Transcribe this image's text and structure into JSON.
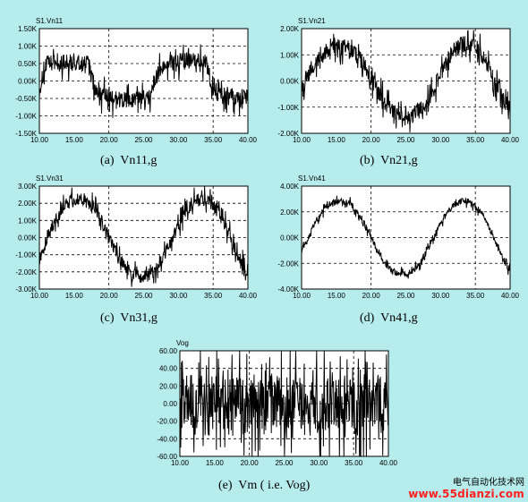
{
  "chart_data": [
    {
      "type": "line",
      "title": "S1.Vn11",
      "caption": "(a)  Vn11,g",
      "x_ticks": [
        "10.00",
        "15.00",
        "20.00",
        "25.00",
        "30.00",
        "35.00",
        "40.00"
      ],
      "y_ticks": [
        "1.50K",
        "1.00K",
        "0.50K",
        "0.00K",
        "-0.50K",
        "-1.00K",
        "-1.50K"
      ],
      "xlim": [
        10,
        40
      ],
      "ylim": [
        -1500,
        1500
      ],
      "grid": true,
      "series": [
        {
          "x": [
            10.0,
            11.0,
            12.0,
            13.0,
            14.0,
            15.0,
            16.0,
            17.0,
            18.0,
            19.0,
            20.0,
            21.0,
            22.0,
            23.0,
            24.0,
            25.0,
            26.0,
            27.0,
            28.0,
            29.0,
            30.0,
            31.0,
            32.0,
            33.0,
            34.0,
            35.0,
            36.0,
            37.0,
            38.0,
            39.0,
            40.0
          ],
          "y": [
            -250,
            500,
            500,
            500,
            550,
            520,
            500,
            500,
            -200,
            -400,
            -500,
            -500,
            -550,
            -550,
            -500,
            -500,
            -450,
            200,
            500,
            550,
            550,
            600,
            550,
            550,
            500,
            -200,
            -400,
            -450,
            -450,
            -450,
            -400
          ],
          "noise": 350
        }
      ]
    },
    {
      "type": "line",
      "title": "S1.Vn21",
      "caption": "(b)  Vn21,g",
      "x_ticks": [
        "10.00",
        "15.00",
        "20.00",
        "25.00",
        "30.00",
        "35.00",
        "40.00"
      ],
      "y_ticks": [
        "2.00K",
        "1.00K",
        "0.00K",
        "-1.00K",
        "-2.00K"
      ],
      "xlim": [
        10,
        40
      ],
      "ylim": [
        -2000,
        2000
      ],
      "grid": true,
      "series": [
        {
          "x": [
            10.0,
            11.0,
            12.0,
            13.0,
            14.0,
            15.0,
            16.0,
            17.0,
            18.0,
            19.0,
            20.0,
            21.0,
            22.0,
            23.0,
            24.0,
            25.0,
            26.0,
            27.0,
            28.0,
            29.0,
            30.0,
            31.0,
            32.0,
            33.0,
            34.0,
            35.0,
            36.0,
            37.0,
            38.0,
            39.0,
            40.0
          ],
          "y": [
            -200,
            300,
            700,
            1000,
            1200,
            1300,
            1300,
            1200,
            1000,
            600,
            100,
            -400,
            -800,
            -1100,
            -1300,
            -1400,
            -1300,
            -1100,
            -800,
            -300,
            300,
            800,
            1200,
            1400,
            1400,
            1300,
            1000,
            500,
            -100,
            -700,
            -1100
          ],
          "noise": 450
        }
      ]
    },
    {
      "type": "line",
      "title": "S1.Vn31",
      "caption": "(c)  Vn31,g",
      "x_ticks": [
        "10.00",
        "15.00",
        "20.00",
        "25.00",
        "30.00",
        "35.00",
        "40.00"
      ],
      "y_ticks": [
        "3.00K",
        "2.00K",
        "1.00K",
        "0.00K",
        "-1.00K",
        "-2.00K",
        "-3.00K"
      ],
      "xlim": [
        10,
        40
      ],
      "ylim": [
        -3000,
        3000
      ],
      "grid": true,
      "series": [
        {
          "x": [
            10.0,
            11.0,
            12.0,
            13.0,
            14.0,
            15.0,
            16.0,
            17.0,
            18.0,
            19.0,
            20.0,
            21.0,
            22.0,
            23.0,
            24.0,
            25.0,
            26.0,
            27.0,
            28.0,
            29.0,
            30.0,
            31.0,
            32.0,
            33.0,
            34.0,
            35.0,
            36.0,
            37.0,
            38.0,
            39.0,
            40.0
          ],
          "y": [
            -1200,
            -200,
            800,
            1500,
            2000,
            2200,
            2200,
            2000,
            1600,
            900,
            0,
            -800,
            -1500,
            -2000,
            -2200,
            -2300,
            -2100,
            -1700,
            -1000,
            -200,
            700,
            1500,
            2000,
            2200,
            2200,
            1900,
            1300,
            500,
            -500,
            -1400,
            -2000
          ],
          "noise": 550
        }
      ]
    },
    {
      "type": "line",
      "title": "S1.Vn41",
      "caption": "(d)  Vn41,g",
      "x_ticks": [
        "10.00",
        "15.00",
        "20.00",
        "25.00",
        "30.00",
        "35.00",
        "40.00"
      ],
      "y_ticks": [
        "4.00K",
        "2.00K",
        "0.00K",
        "-2.00K",
        "-4.00K"
      ],
      "xlim": [
        10,
        40
      ],
      "ylim": [
        -4000,
        4000
      ],
      "grid": true,
      "series": [
        {
          "x": [
            10.0,
            11.0,
            12.0,
            13.0,
            14.0,
            15.0,
            16.0,
            17.0,
            18.0,
            19.0,
            20.0,
            21.0,
            22.0,
            23.0,
            24.0,
            25.0,
            26.0,
            27.0,
            28.0,
            29.0,
            30.0,
            31.0,
            32.0,
            33.0,
            34.0,
            35.0,
            36.0,
            37.0,
            38.0,
            39.0,
            40.0
          ],
          "y": [
            -1000,
            0,
            1200,
            2000,
            2600,
            2800,
            2800,
            2600,
            2000,
            1100,
            0,
            -1000,
            -2000,
            -2600,
            -2800,
            -2800,
            -2600,
            -2000,
            -1100,
            0,
            1100,
            2000,
            2600,
            2800,
            2800,
            2500,
            1800,
            800,
            -500,
            -1700,
            -2600
          ],
          "noise": 350
        }
      ]
    },
    {
      "type": "line",
      "title": "Vog",
      "caption": "(e)  Vm ( i.e. Vog)",
      "x_ticks": [
        "10.00",
        "15.00",
        "20.00",
        "25.00",
        "30.00",
        "35.00",
        "40.00"
      ],
      "y_ticks": [
        "60.00",
        "40.00",
        "20.00",
        "0.00",
        "-20.00",
        "-40.00",
        "-60.00"
      ],
      "xlim": [
        10,
        40
      ],
      "ylim": [
        -60,
        60
      ],
      "grid": true,
      "series": [
        {
          "x": [
            10.0,
            11.0,
            12.0,
            13.0,
            14.0,
            15.0,
            16.0,
            17.0,
            18.0,
            19.0,
            20.0,
            21.0,
            22.0,
            23.0,
            24.0,
            25.0,
            26.0,
            27.0,
            28.0,
            29.0,
            30.0,
            31.0,
            32.0,
            33.0,
            34.0,
            35.0,
            36.0,
            37.0,
            38.0,
            39.0,
            40.0
          ],
          "y": [
            0,
            5,
            -5,
            10,
            -10,
            5,
            0,
            -5,
            10,
            -5,
            0,
            5,
            -10,
            5,
            0,
            -5,
            5,
            0,
            -5,
            10,
            -5,
            0,
            5,
            -5,
            10,
            -5,
            0,
            5,
            -5,
            0,
            -10
          ],
          "noise": 45
        }
      ]
    }
  ],
  "footer": {
    "site_name": "电气自动化技术网",
    "url": "www.55dianzi.com"
  }
}
